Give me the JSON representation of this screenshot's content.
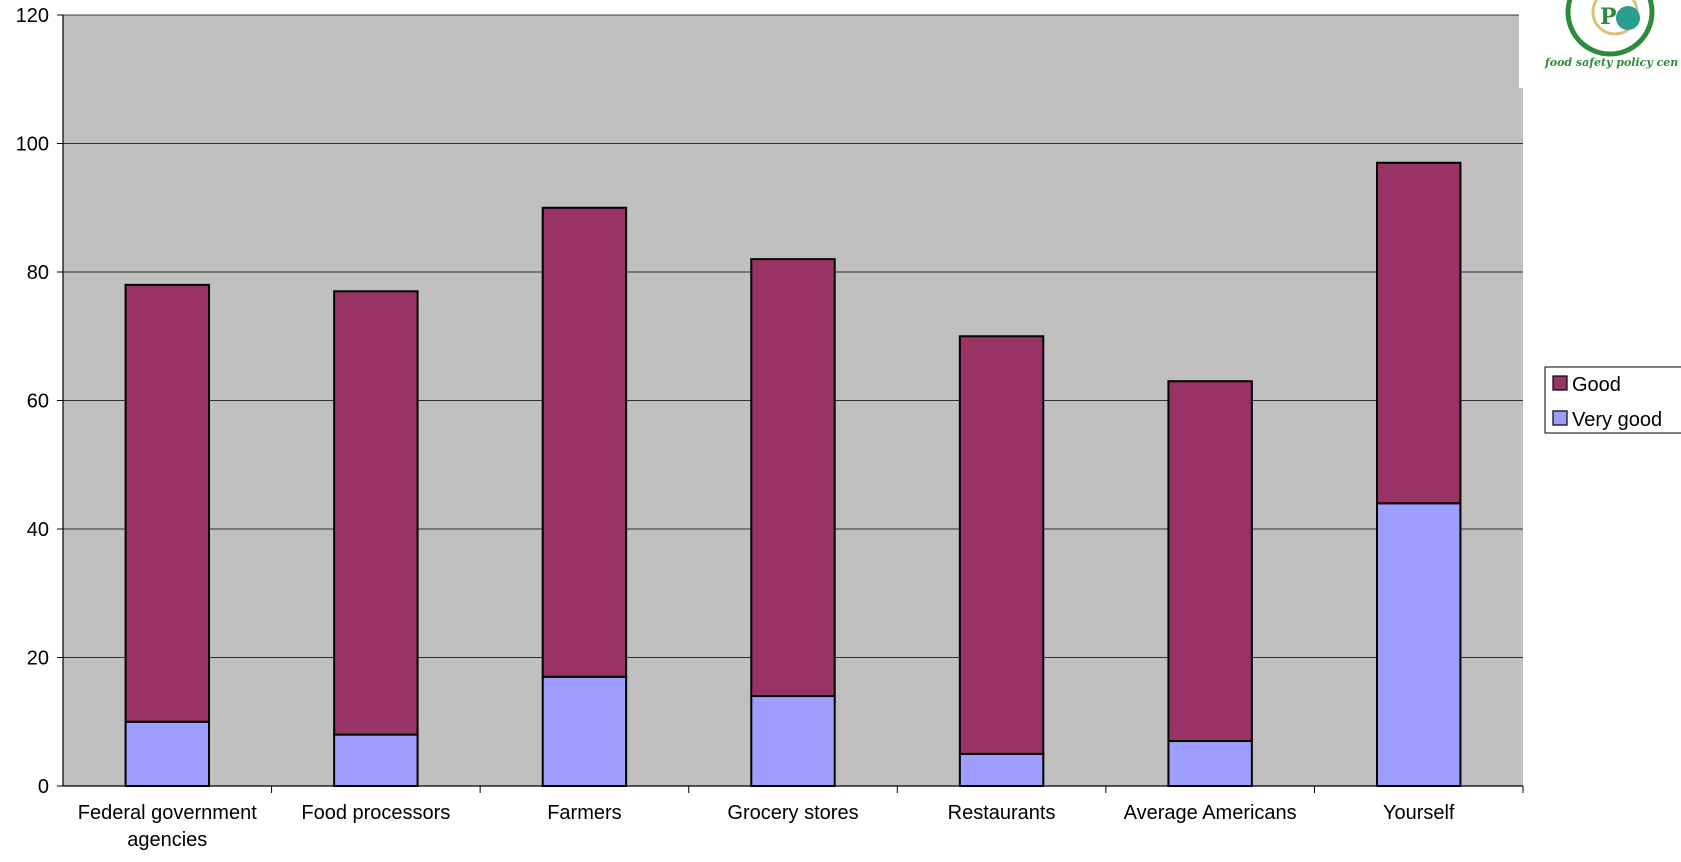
{
  "chart_data": {
    "type": "bar",
    "stacked": true,
    "title": "",
    "xlabel": "",
    "ylabel": "",
    "ylim": [
      0,
      120
    ],
    "yticks": [
      0,
      20,
      40,
      60,
      80,
      100,
      120
    ],
    "grid": true,
    "legend_position": "right",
    "categories": [
      "Federal government agencies",
      "Food processors",
      "Farmers",
      "Grocery stores",
      "Restaurants",
      "Average Americans",
      "Yourself"
    ],
    "series": [
      {
        "name": "Very good",
        "color": "#9e9eff",
        "values": [
          10,
          8,
          17,
          14,
          5,
          7,
          44
        ]
      },
      {
        "name": "Good",
        "color": "#993366",
        "values": [
          68,
          69,
          73,
          68,
          65,
          56,
          53
        ]
      }
    ],
    "legend_order": [
      "Good",
      "Very good"
    ]
  },
  "logo": {
    "text": "food safety policy cen",
    "color": "#2e8b3e"
  },
  "colors": {
    "plot_background": "#c0c0c0",
    "gridline": "#000000",
    "bar_outline": "#000000"
  }
}
